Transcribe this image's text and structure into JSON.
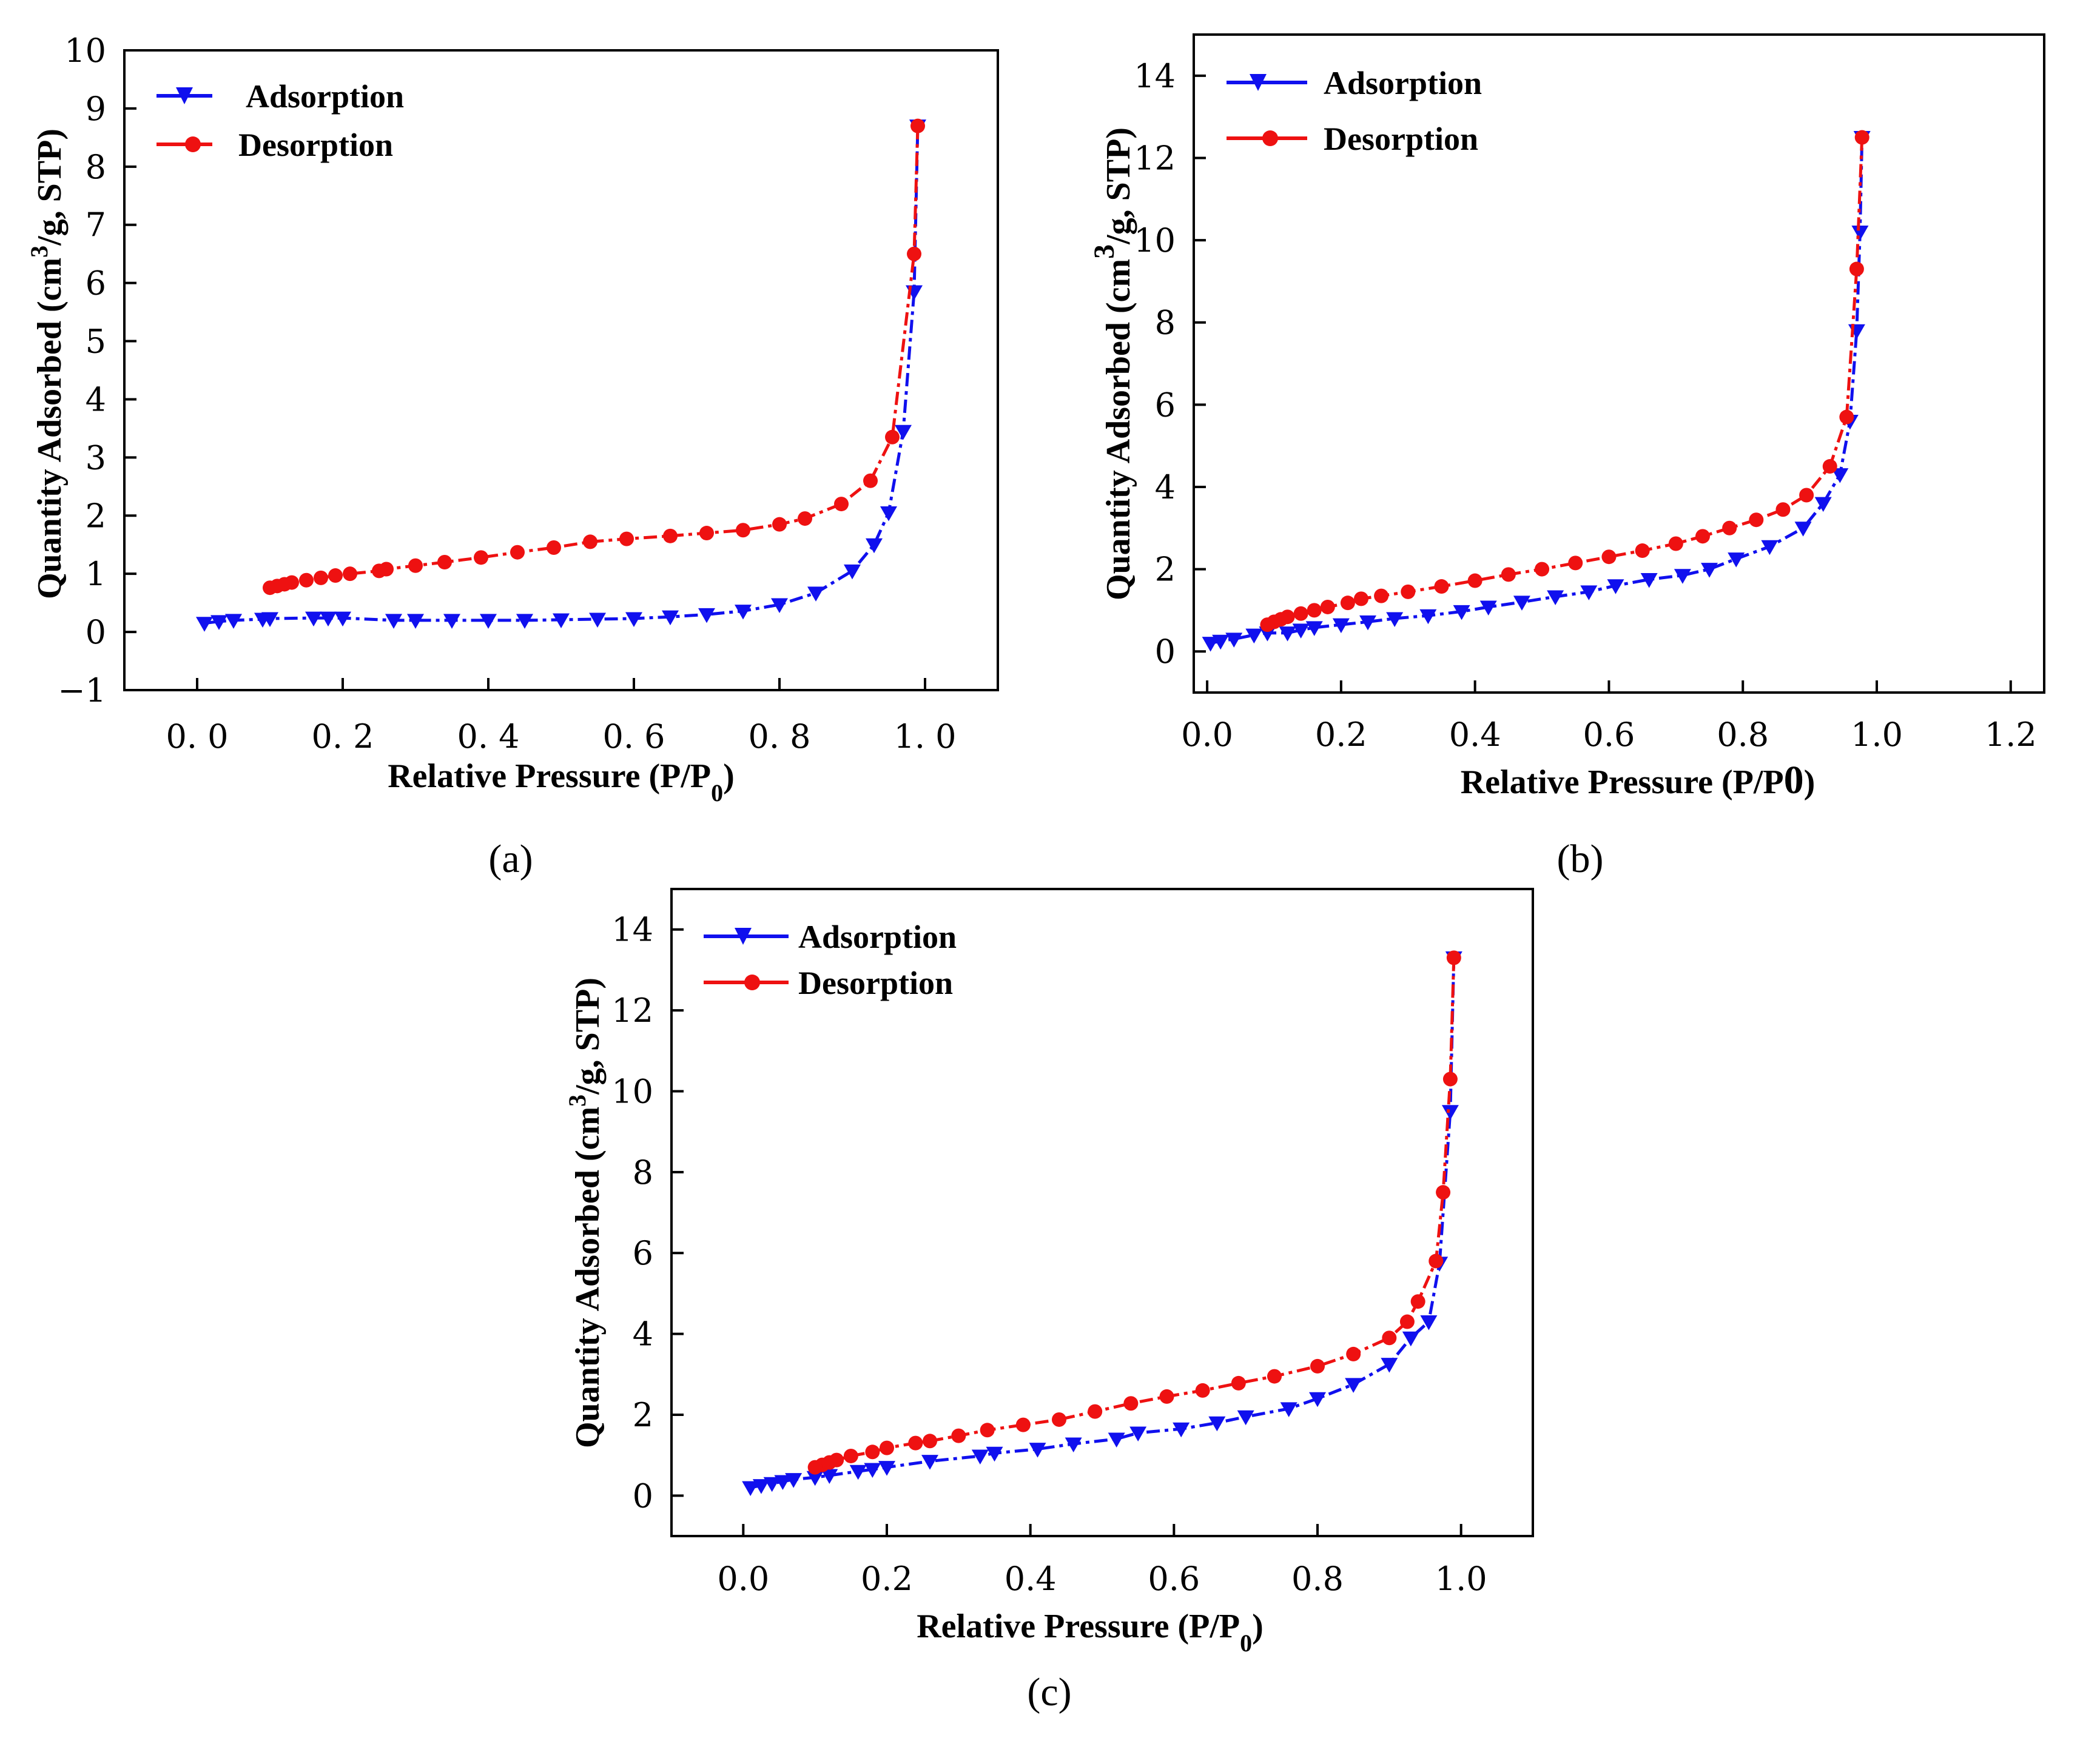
{
  "figure": {
    "colors": {
      "adsorption": "#1010ee",
      "desorption": "#ee1111",
      "axis": "#000000"
    }
  },
  "chart_data": [
    {
      "id": "a",
      "type": "line",
      "panel_label": "(a)",
      "title": "",
      "xlabel_main": "Relative Pressure (P/P",
      "xlabel_sub": "0",
      "xlabel_close": ")",
      "ylabel_main": "Quantity Adsorbed (cm",
      "ylabel_sup": "3",
      "ylabel_close": "/g, STP)",
      "xlim": [
        -0.1,
        1.1
      ],
      "ylim": [
        -1,
        10
      ],
      "xticks": [
        0.0,
        0.2,
        0.4,
        0.6,
        0.8,
        1.0
      ],
      "xtick_labels": [
        "0. 0",
        "0. 2",
        "0. 4",
        "0. 6",
        "0. 8",
        "1. 0"
      ],
      "yticks": [
        -1,
        0,
        1,
        2,
        3,
        4,
        5,
        6,
        7,
        8,
        9,
        10
      ],
      "ytick_labels": [
        "−1",
        "0",
        "1",
        "2",
        "3",
        "4",
        "5",
        "6",
        "7",
        "8",
        "9",
        "10"
      ],
      "legend": [
        "Adsorption",
        "Desorption"
      ],
      "legend_position": "top-left",
      "series": [
        {
          "name": "Adsorption",
          "marker": "triangle-down",
          "x": [
            0.01,
            0.03,
            0.05,
            0.09,
            0.1,
            0.16,
            0.18,
            0.2,
            0.27,
            0.3,
            0.35,
            0.4,
            0.45,
            0.5,
            0.55,
            0.6,
            0.65,
            0.7,
            0.75,
            0.8,
            0.85,
            0.9,
            0.93,
            0.95,
            0.97,
            0.985,
            0.99
          ],
          "y": [
            0.15,
            0.18,
            0.2,
            0.22,
            0.23,
            0.24,
            0.24,
            0.24,
            0.2,
            0.2,
            0.2,
            0.2,
            0.2,
            0.21,
            0.22,
            0.23,
            0.26,
            0.3,
            0.36,
            0.47,
            0.67,
            1.05,
            1.5,
            2.05,
            3.45,
            5.85,
            8.7
          ]
        },
        {
          "name": "Desorption",
          "marker": "circle",
          "x": [
            0.99,
            0.985,
            0.955,
            0.925,
            0.885,
            0.835,
            0.8,
            0.75,
            0.7,
            0.65,
            0.59,
            0.54,
            0.49,
            0.44,
            0.39,
            0.34,
            0.3,
            0.26,
            0.25,
            0.21,
            0.19,
            0.17,
            0.15,
            0.13,
            0.12,
            0.11,
            0.1
          ],
          "y": [
            8.7,
            6.5,
            3.35,
            2.6,
            2.2,
            1.95,
            1.85,
            1.75,
            1.7,
            1.65,
            1.6,
            1.55,
            1.45,
            1.37,
            1.28,
            1.2,
            1.14,
            1.08,
            1.05,
            1.0,
            0.97,
            0.93,
            0.89,
            0.85,
            0.82,
            0.79,
            0.76
          ]
        }
      ]
    },
    {
      "id": "b",
      "type": "line",
      "panel_label": "(b)",
      "title": "",
      "xlabel_main": "Relative Pressure (P/P",
      "xlabel_sub": "0",
      "xlabel_close": ")",
      "ylabel_main": "Quantity Adsorbed (cm",
      "ylabel_sup": "3",
      "ylabel_close": "/g, STP)",
      "xlim": [
        -0.02,
        1.25
      ],
      "ylim": [
        -1,
        15
      ],
      "xticks": [
        0.0,
        0.2,
        0.4,
        0.6,
        0.8,
        1.0,
        1.2
      ],
      "xtick_labels": [
        "0.0",
        "0.2",
        "0.4",
        "0.6",
        "0.8",
        "1.0",
        "1.2"
      ],
      "yticks": [
        0,
        2,
        4,
        6,
        8,
        10,
        12,
        14
      ],
      "ytick_labels": [
        "0",
        "2",
        "4",
        "6",
        "8",
        "10",
        "12",
        "14"
      ],
      "legend": [
        "Adsorption",
        "Desorption"
      ],
      "legend_position": "top-left",
      "series": [
        {
          "name": "Adsorption",
          "marker": "triangle-down",
          "x": [
            0.005,
            0.02,
            0.04,
            0.07,
            0.09,
            0.12,
            0.14,
            0.16,
            0.2,
            0.24,
            0.28,
            0.33,
            0.38,
            0.42,
            0.47,
            0.52,
            0.57,
            0.61,
            0.66,
            0.71,
            0.75,
            0.79,
            0.84,
            0.89,
            0.92,
            0.945,
            0.96,
            0.97,
            0.975,
            0.978
          ],
          "y": [
            0.2,
            0.25,
            0.3,
            0.4,
            0.45,
            0.45,
            0.52,
            0.58,
            0.65,
            0.72,
            0.8,
            0.87,
            0.97,
            1.08,
            1.2,
            1.33,
            1.45,
            1.6,
            1.75,
            1.85,
            2.0,
            2.25,
            2.55,
            3.0,
            3.6,
            4.3,
            5.6,
            7.8,
            10.2,
            12.5
          ]
        },
        {
          "name": "Desorption",
          "marker": "circle",
          "x": [
            0.978,
            0.97,
            0.955,
            0.93,
            0.895,
            0.86,
            0.82,
            0.78,
            0.74,
            0.7,
            0.65,
            0.6,
            0.55,
            0.5,
            0.45,
            0.4,
            0.35,
            0.3,
            0.26,
            0.23,
            0.21,
            0.18,
            0.16,
            0.14,
            0.12,
            0.11,
            0.1,
            0.09
          ],
          "y": [
            12.5,
            9.3,
            5.7,
            4.5,
            3.8,
            3.45,
            3.2,
            3.0,
            2.8,
            2.62,
            2.45,
            2.3,
            2.15,
            2.0,
            1.87,
            1.72,
            1.58,
            1.45,
            1.35,
            1.28,
            1.18,
            1.08,
            1.0,
            0.92,
            0.84,
            0.78,
            0.72,
            0.65
          ]
        }
      ]
    },
    {
      "id": "c",
      "type": "line",
      "panel_label": "(c)",
      "title": "",
      "xlabel_main": "Relative Pressure (P/P",
      "xlabel_sub": "0",
      "xlabel_close": ")",
      "ylabel_main": "Quantity Adsorbed (cm",
      "ylabel_sup": "3",
      "ylabel_close": "/g, STP)",
      "xlim": [
        -0.1,
        1.1
      ],
      "ylim": [
        -1,
        15
      ],
      "xticks": [
        0.0,
        0.2,
        0.4,
        0.6,
        0.8,
        1.0
      ],
      "xtick_labels": [
        "0.0",
        "0.2",
        "0.4",
        "0.6",
        "0.8",
        "1.0"
      ],
      "yticks": [
        0,
        2,
        4,
        6,
        8,
        10,
        12,
        14
      ],
      "ytick_labels": [
        "0",
        "2",
        "4",
        "6",
        "8",
        "10",
        "12",
        "14"
      ],
      "legend": [
        "Adsorption",
        "Desorption"
      ],
      "legend_position": "top-left",
      "series": [
        {
          "name": "Adsorption",
          "marker": "triangle-down",
          "x": [
            0.01,
            0.025,
            0.04,
            0.055,
            0.07,
            0.1,
            0.12,
            0.16,
            0.18,
            0.2,
            0.26,
            0.33,
            0.35,
            0.41,
            0.46,
            0.52,
            0.55,
            0.61,
            0.66,
            0.7,
            0.76,
            0.8,
            0.85,
            0.9,
            0.93,
            0.955,
            0.97,
            0.985,
            0.99
          ],
          "y": [
            0.2,
            0.25,
            0.3,
            0.35,
            0.4,
            0.45,
            0.5,
            0.6,
            0.65,
            0.7,
            0.85,
            0.98,
            1.05,
            1.15,
            1.28,
            1.4,
            1.55,
            1.65,
            1.8,
            1.95,
            2.15,
            2.4,
            2.75,
            3.25,
            3.9,
            4.3,
            5.75,
            9.5,
            13.3
          ]
        },
        {
          "name": "Desorption",
          "marker": "circle",
          "x": [
            0.99,
            0.985,
            0.975,
            0.965,
            0.94,
            0.925,
            0.9,
            0.85,
            0.8,
            0.74,
            0.69,
            0.64,
            0.59,
            0.54,
            0.49,
            0.44,
            0.39,
            0.34,
            0.3,
            0.26,
            0.24,
            0.2,
            0.18,
            0.15,
            0.13,
            0.12,
            0.11,
            0.1
          ],
          "y": [
            13.3,
            10.3,
            7.5,
            5.8,
            4.8,
            4.3,
            3.9,
            3.5,
            3.2,
            2.95,
            2.78,
            2.6,
            2.45,
            2.28,
            2.08,
            1.88,
            1.75,
            1.62,
            1.48,
            1.35,
            1.3,
            1.18,
            1.08,
            0.98,
            0.88,
            0.82,
            0.76,
            0.7
          ]
        }
      ]
    }
  ]
}
